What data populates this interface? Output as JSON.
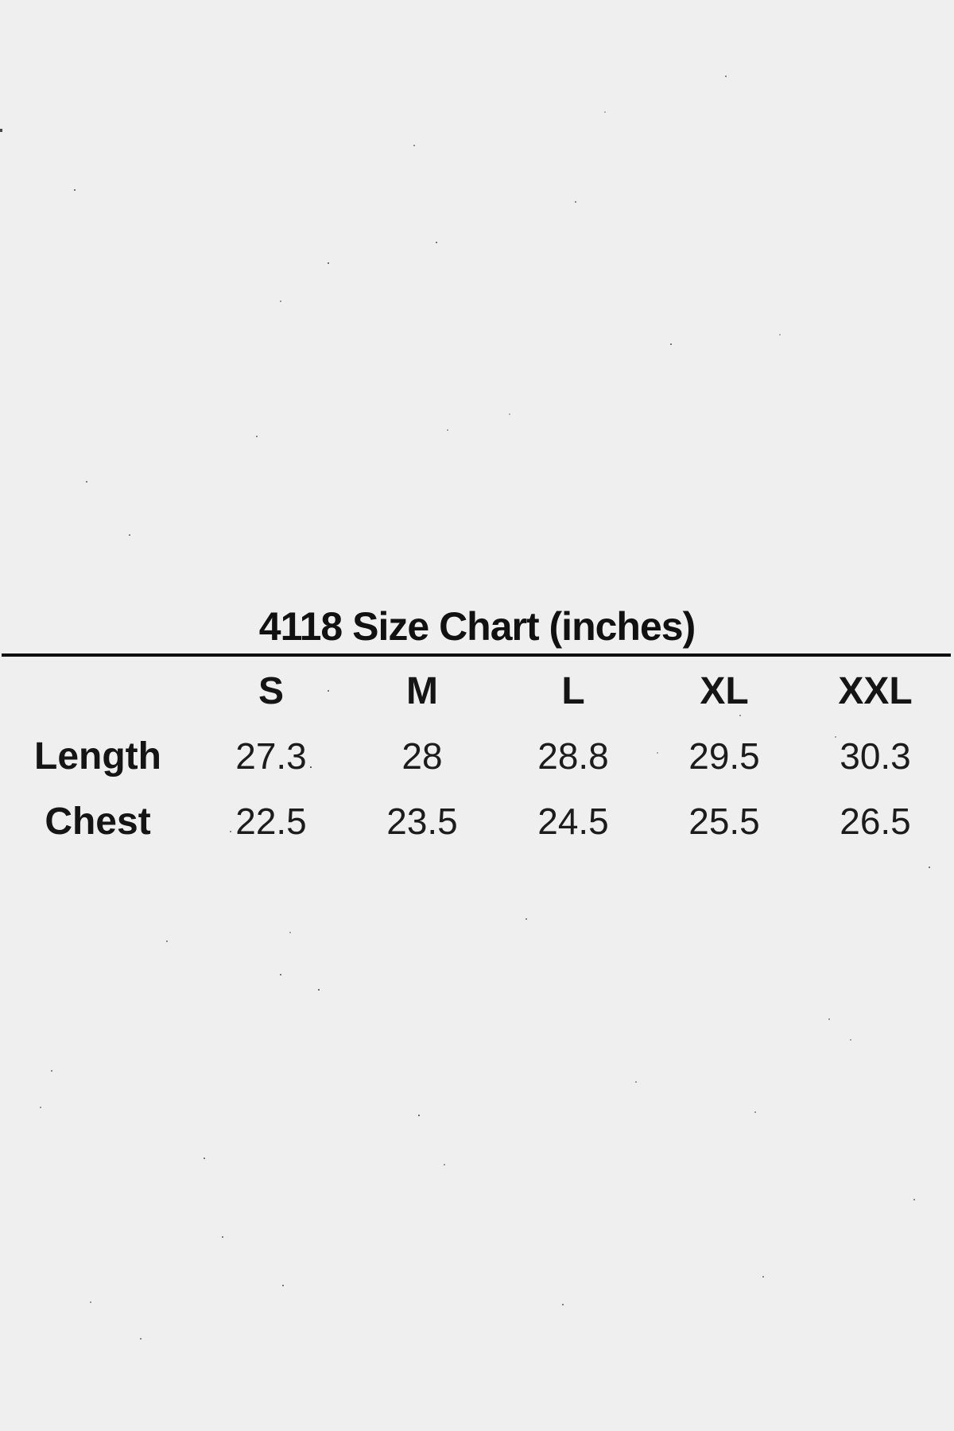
{
  "page": {
    "background_color": "#efefef",
    "text_color": "#1a1a1a"
  },
  "chart_data": {
    "type": "table",
    "title": "4118 Size Chart (inches)",
    "style_number": "4118",
    "units": "inches",
    "columns": [
      "S",
      "M",
      "L",
      "XL",
      "XXL"
    ],
    "rows": [
      {
        "label": "Length",
        "values": [
          "27.3",
          "28",
          "28.8",
          "29.5",
          "30.3"
        ]
      },
      {
        "label": "Chest",
        "values": [
          "22.5",
          "23.5",
          "24.5",
          "25.5",
          "26.5"
        ]
      }
    ]
  }
}
